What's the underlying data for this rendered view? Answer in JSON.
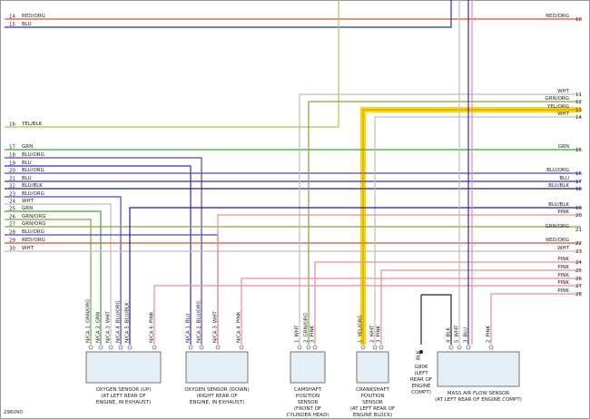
{
  "left_wires": [
    {
      "number": "14",
      "label": "RED/ORG",
      "color": "#e8482a"
    },
    {
      "number": "15",
      "label": "BLU",
      "color": "#2a2ad6"
    },
    {
      "number": "16",
      "label": "YEL/BLK",
      "color": "#b5c44a"
    },
    {
      "number": "17",
      "label": "GRN",
      "color": "#3aa82e"
    },
    {
      "number": "18",
      "label": "BLU/ORG",
      "color": "#5a3fc0"
    },
    {
      "number": "19",
      "label": "BLU",
      "color": "#2a2ad6"
    },
    {
      "number": "20",
      "label": "BLU/ORG",
      "color": "#5a3fc0"
    },
    {
      "number": "21",
      "label": "BLU",
      "color": "#2a2ad6"
    },
    {
      "number": "22",
      "label": "BLU/BLK",
      "color": "#1a1a9a"
    },
    {
      "number": "23",
      "label": "BLU/ORG",
      "color": "#5a3fc0"
    },
    {
      "number": "24",
      "label": "WHT",
      "color": "#bdbdbd"
    },
    {
      "number": "25",
      "label": "GRN",
      "color": "#3aa82e"
    },
    {
      "number": "26",
      "label": "GRN/ORG",
      "color": "#7fa83a"
    },
    {
      "number": "27",
      "label": "GRN/ORG",
      "color": "#7fa83a"
    },
    {
      "number": "28",
      "label": "BLU/ORG",
      "color": "#5a3fc0"
    },
    {
      "number": "29",
      "label": "RED/ORG",
      "color": "#e8482a"
    },
    {
      "number": "30",
      "label": "WHT",
      "color": "#bdbdbd"
    }
  ],
  "right_wires": [
    {
      "number": "10",
      "label": "RED/ORG",
      "color": "#e8482a"
    },
    {
      "number": "11",
      "label": "WHT",
      "color": "#bdbdbd"
    },
    {
      "number": "12",
      "label": "GRN/ORG",
      "color": "#7fa83a"
    },
    {
      "number": "13",
      "label": "YEL/ORG",
      "color": "#d4a017"
    },
    {
      "number": "14",
      "label": "WHT",
      "color": "#bdbdbd"
    },
    {
      "number": "15",
      "label": "GRN",
      "color": "#3aa82e"
    },
    {
      "number": "16",
      "label": "BLU/ORG",
      "color": "#5a3fc0"
    },
    {
      "number": "17",
      "label": "BLU",
      "color": "#2a2ad6"
    },
    {
      "number": "18",
      "label": "BLU/BLK",
      "color": "#1a1a9a"
    },
    {
      "number": "19",
      "label": "BLU/BLK",
      "color": "#1a1a9a"
    },
    {
      "number": "20",
      "label": "PINK",
      "color": "#f08a9a"
    },
    {
      "number": "21",
      "label": "GRN/ORG",
      "color": "#7fa83a"
    },
    {
      "number": "22",
      "label": "RED/ORG",
      "color": "#e8482a"
    },
    {
      "number": "23",
      "label": "WHT",
      "color": "#bdbdbd"
    },
    {
      "number": "24",
      "label": "PINK",
      "color": "#f08a9a"
    },
    {
      "number": "25",
      "label": "PINK",
      "color": "#f08a9a"
    },
    {
      "number": "26",
      "label": "PINK",
      "color": "#f08a9a"
    },
    {
      "number": "27",
      "label": "PINK",
      "color": "#f08a9a"
    },
    {
      "number": "28",
      "label": "PINK",
      "color": "#f08a9a"
    }
  ],
  "components": [
    {
      "caption": [
        "OXYGEN SENSOR (UP)",
        "(AT LEFT REAR OF",
        "ENGINE, IN EXHAUST)"
      ],
      "pins": [
        {
          "pin": "N/CA 1",
          "wire": "GRN/ORG"
        },
        {
          "pin": "N/CA 2",
          "wire": "GRN"
        },
        {
          "pin": "N/CA 3",
          "wire": "WHT"
        },
        {
          "pin": "N/CA 4",
          "wire": "BLU/ORG"
        },
        {
          "pin": "N/CA 5",
          "wire": "BLU/BLK"
        },
        {
          "pin": "N/CA 6",
          "wire": "PINK"
        }
      ]
    },
    {
      "caption": [
        "OXYGEN SENSOR (DOWN)",
        "(RIGHT REAR OF",
        "ENGINE, IN EXHAUST)"
      ],
      "pins": [
        {
          "pin": "N/CA 1",
          "wire": "BLU"
        },
        {
          "pin": "N/CA 2",
          "wire": "BLU/ORG"
        },
        {
          "pin": "N/CA 3",
          "wire": "WHT"
        },
        {
          "pin": "N/CA 4",
          "wire": "PINK"
        }
      ]
    },
    {
      "caption": [
        "CAMSHAFT",
        "POSITION",
        "SENSOR",
        "(FRONT OF",
        "CYLINDER HEAD)"
      ],
      "pins": [
        {
          "pin": "1",
          "wire": "WHT"
        },
        {
          "pin": "2",
          "wire": "GRN/ORG"
        },
        {
          "pin": "3",
          "wire": "PINK"
        }
      ]
    },
    {
      "caption": [
        "CRANKSHAFT",
        "POSITION",
        "SENSOR",
        "(AT LEFT REAR OF",
        "ENGINE BLOCK)"
      ],
      "pins": [
        {
          "pin": "1",
          "wire": "YEL/ORG"
        },
        {
          "pin": "2",
          "wire": "WHT"
        },
        {
          "pin": "3",
          "wire": "PINK"
        }
      ]
    },
    {
      "caption": [
        "G806",
        "(LEFT",
        "REAR OF",
        "ENGINE",
        "COMPT)"
      ],
      "pins": [
        {
          "pin": "",
          "wire": "BLK"
        }
      ]
    },
    {
      "caption": [
        "MASS AIR FLOW SENSOR",
        "(AT LEFT REAR OF ENGINE COMPT)"
      ],
      "pins": [
        {
          "pin": "4",
          "wire": "BLK"
        },
        {
          "pin": "5",
          "wire": "WHT"
        },
        {
          "pin": "3",
          "wire": "BLU"
        },
        {
          "pin": "2",
          "wire": "PINK"
        }
      ]
    }
  ],
  "figure_id": "296090"
}
